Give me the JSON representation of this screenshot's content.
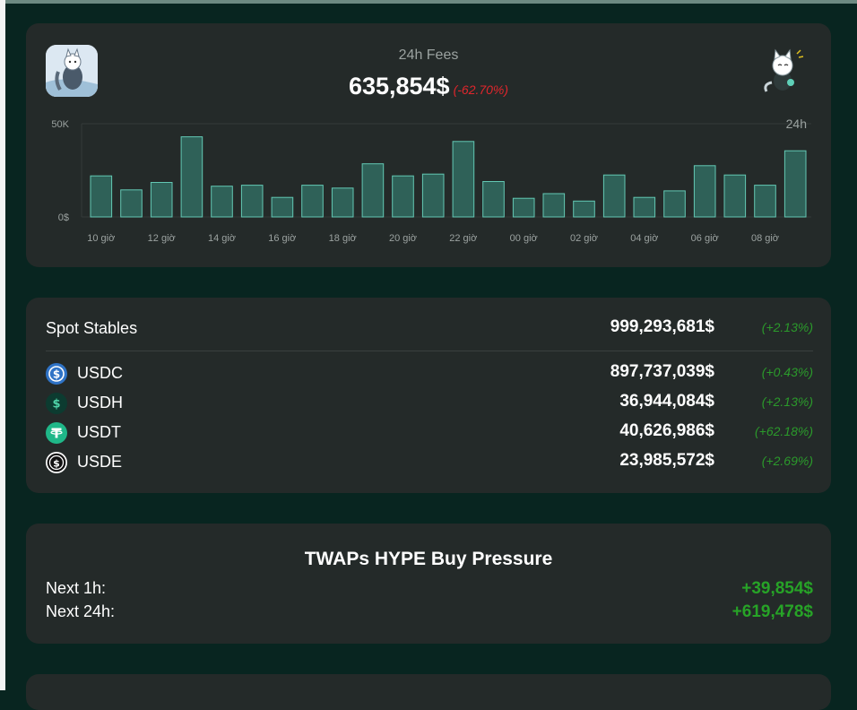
{
  "fees": {
    "title": "24h Fees",
    "value": "635,854$",
    "change": "(-62.70%)",
    "range_label": "24h",
    "chart_data": {
      "type": "bar",
      "ylim": [
        0,
        50000
      ],
      "y_ticks": [
        "50K",
        "0$"
      ],
      "x_tick_labels": [
        "10 giờ",
        "12 giờ",
        "14 giờ",
        "16 giờ",
        "18 giờ",
        "20 giờ",
        "22 giờ",
        "00 giờ",
        "02 giờ",
        "04 giờ",
        "06 giờ",
        "08 giờ"
      ],
      "values": [
        22000,
        14500,
        18500,
        43000,
        16500,
        17000,
        10500,
        17000,
        15500,
        28500,
        22000,
        23000,
        40500,
        19000,
        10000,
        12500,
        8500,
        22500,
        10500,
        14000,
        27500,
        22500,
        17000,
        35500
      ],
      "colors": {
        "bar_fill": "#2f6158",
        "bar_stroke": "#63c8b4"
      }
    }
  },
  "stables": {
    "title": "Spot Stables",
    "total": "999,293,681$",
    "total_change": "(+2.13%)",
    "items": [
      {
        "name": "USDC",
        "value": "897,737,039$",
        "change": "(+0.43%)",
        "icon": "usdc-coin-icon"
      },
      {
        "name": "USDH",
        "value": "36,944,084$",
        "change": "(+2.13%)",
        "icon": "usdh-coin-icon"
      },
      {
        "name": "USDT",
        "value": "40,626,986$",
        "change": "(+62.18%)",
        "icon": "usdt-coin-icon"
      },
      {
        "name": "USDE",
        "value": "23,985,572$",
        "change": "(+2.69%)",
        "icon": "usde-coin-icon"
      }
    ]
  },
  "twap": {
    "title": "TWAPs HYPE Buy Pressure",
    "next_1h_label": "Next 1h:",
    "next_1h_value": "+39,854$",
    "next_24h_label": "Next 24h:",
    "next_24h_value": "+619,478$"
  },
  "colors": {
    "background": "#082520",
    "card": "#242a29",
    "positive": "#2b9a2b",
    "negative": "#e0262c"
  }
}
